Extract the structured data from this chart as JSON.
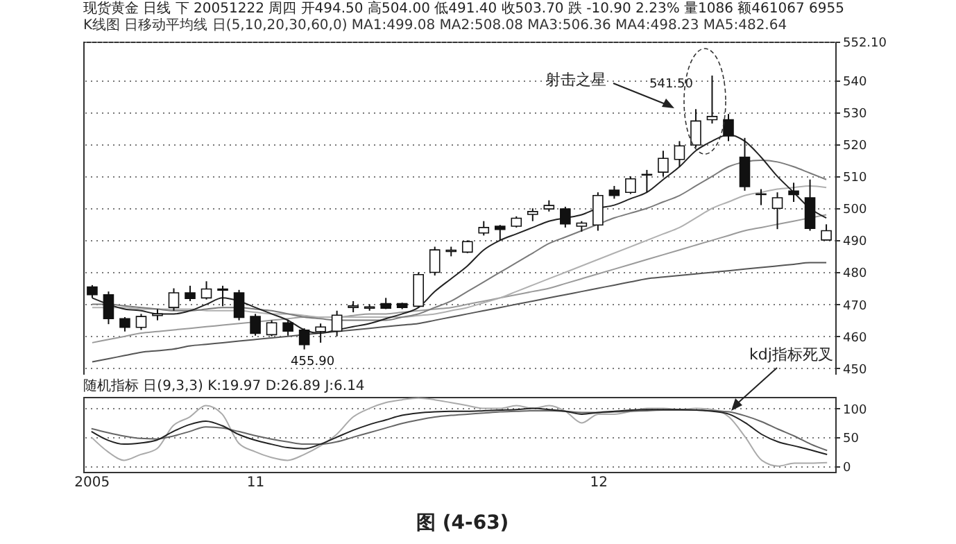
{
  "chart_data": [
    {
      "type": "candlestick",
      "title": "现货黄金 日线 下 20051222 周四 开494.50 高504.00 低491.40 收503.70 跌 -10.90 2.23% 量1086 额461067 6955",
      "subtitle": "K线图 日移动平均线 日(5,10,20,30,60,0) MA1:499.08 MA2:508.08 MA3:506.36 MA4:498.23 MA5:482.64",
      "categories": [
        "2005",
        null,
        null,
        null,
        null,
        null,
        null,
        null,
        null,
        null,
        "11",
        null,
        null,
        null,
        null,
        null,
        null,
        null,
        null,
        null,
        null,
        null,
        null,
        null,
        null,
        null,
        null,
        null,
        null,
        null,
        null,
        "12",
        null,
        null,
        null,
        null,
        null,
        null,
        null,
        null,
        null,
        null,
        null,
        null,
        null,
        null
      ],
      "ohlc": [
        [
          475.4,
          476,
          472,
          473
        ],
        [
          473,
          474,
          463.8,
          465.5
        ],
        [
          465.5,
          466,
          461.5,
          462.8
        ],
        [
          462.8,
          467,
          462,
          466.2
        ],
        [
          466.5,
          468.5,
          465,
          467
        ],
        [
          469,
          475,
          468,
          473.6
        ],
        [
          473.6,
          475.8,
          471,
          471.8
        ],
        [
          472,
          477.2,
          471.5,
          474.8
        ],
        [
          474.8,
          475.8,
          469.4,
          474.4
        ],
        [
          473.6,
          474.5,
          465,
          465.9
        ],
        [
          466.2,
          467,
          460.2,
          460.9
        ],
        [
          460.5,
          465,
          460,
          464.2
        ],
        [
          464.2,
          465.2,
          460.2,
          461.6
        ],
        [
          461.9,
          462.5,
          455.9,
          457.4
        ],
        [
          461.5,
          464,
          458,
          462.9
        ],
        [
          461.6,
          468,
          460,
          466.6
        ],
        [
          469,
          471,
          467.5,
          469.5
        ],
        [
          468.8,
          470,
          468,
          469.2
        ],
        [
          470.2,
          472,
          468.5,
          468.8
        ],
        [
          470.2,
          470.5,
          468.5,
          469
        ],
        [
          469.4,
          480,
          469,
          479.3
        ],
        [
          480,
          488,
          479,
          487
        ],
        [
          486.5,
          488,
          485,
          486.9
        ],
        [
          486.3,
          490,
          486,
          489.6
        ],
        [
          492.3,
          496,
          491.5,
          494
        ],
        [
          494.4,
          494.8,
          490,
          493.4
        ],
        [
          494.4,
          497.5,
          494,
          496.9
        ],
        [
          498.1,
          500,
          496,
          499
        ],
        [
          499.8,
          502.5,
          499,
          500.9
        ],
        [
          499.8,
          500.5,
          494,
          495.1
        ],
        [
          494.4,
          496,
          492.7,
          495.4
        ],
        [
          494.8,
          505,
          493,
          504
        ],
        [
          505.7,
          507,
          503,
          504
        ],
        [
          505,
          510,
          504.5,
          509.2
        ],
        [
          510.4,
          512,
          505,
          510.6
        ],
        [
          511.3,
          518,
          510,
          515.6
        ],
        [
          515.3,
          521,
          513,
          519.5
        ],
        [
          519.8,
          531,
          519,
          527.3
        ],
        [
          527.7,
          541.5,
          526.5,
          528.7
        ],
        [
          527.7,
          529.5,
          521,
          522.6
        ],
        [
          516,
          522,
          505.5,
          506.8
        ],
        [
          504.3,
          506,
          501,
          504.5
        ],
        [
          500,
          505,
          493.5,
          503.3
        ],
        [
          505.4,
          508,
          502,
          504.3
        ],
        [
          503.3,
          509,
          493,
          493.7
        ],
        [
          490.1,
          495,
          490,
          493
        ]
      ],
      "series": [
        {
          "type": "line",
          "color": "#9a9a9a",
          "values": [
            458,
            459,
            460,
            461,
            461.5,
            462,
            462.5,
            463,
            463.5,
            464,
            464.5,
            465,
            465.5,
            466,
            466,
            466,
            466.5,
            467,
            467,
            467.5,
            468,
            468.5,
            469,
            470,
            471,
            472,
            473,
            474,
            475,
            476.5,
            478,
            479.5,
            481,
            482.5,
            484,
            485.5,
            487,
            488.5,
            490,
            491.5,
            493,
            494,
            495,
            496,
            497,
            498
          ]
        },
        {
          "type": "line",
          "color": "#555555",
          "values": [
            452,
            453,
            454,
            455,
            455.5,
            456,
            457,
            457.5,
            458,
            458.5,
            459,
            459.5,
            460,
            460.5,
            461,
            461.5,
            462,
            462.5,
            463,
            463.5,
            464,
            465,
            466,
            467,
            468,
            469,
            470,
            471,
            472,
            473,
            474,
            475,
            476,
            477,
            478,
            478.5,
            479,
            479.5,
            480,
            480.5,
            481,
            481.5,
            482,
            482.5,
            483,
            483
          ]
        },
        {
          "type": "line",
          "color": "#b0b0b0",
          "values": [
            469,
            469,
            469,
            468.5,
            468.5,
            468.5,
            468.5,
            468,
            468,
            468,
            467.5,
            467,
            467,
            466.5,
            466,
            466,
            466,
            466,
            466,
            466,
            466.5,
            467,
            468,
            469,
            470.5,
            472,
            474,
            476,
            478,
            480,
            482,
            484,
            486,
            488,
            490,
            492,
            494,
            497,
            500,
            502,
            504,
            505,
            506,
            506.5,
            507,
            506.5
          ]
        },
        {
          "type": "line",
          "color": "#7a7a7a",
          "values": [
            470,
            470,
            469.5,
            469,
            468.5,
            468,
            468,
            468.5,
            469,
            469,
            468.5,
            468,
            467,
            466,
            465.5,
            465,
            465,
            465,
            465,
            466,
            467,
            469,
            471,
            474,
            477,
            480,
            483,
            486,
            489,
            491,
            493,
            495,
            497,
            498.5,
            500,
            502,
            504,
            507,
            510,
            513,
            514.5,
            515,
            514.5,
            513,
            511,
            509
          ]
        },
        {
          "type": "line",
          "color": "#222222",
          "values": [
            472,
            470,
            468.5,
            468,
            467,
            467,
            468,
            470,
            472,
            471,
            469,
            467,
            465,
            462,
            461,
            462,
            463,
            464,
            465.5,
            467,
            469,
            474,
            478,
            482,
            487,
            490,
            492,
            494,
            496,
            497,
            498,
            500,
            501,
            503,
            505,
            509,
            513,
            518,
            521,
            523,
            521,
            516,
            510,
            505,
            500,
            497
          ]
        }
      ],
      "ylim": [
        448,
        552.1
      ],
      "yticks": [
        450,
        460,
        470,
        480,
        490,
        500,
        510,
        520,
        530,
        540,
        {
          "value": 552.1,
          "label": "552.10"
        }
      ],
      "grid": "y",
      "tick_labels": "y",
      "annotations": [
        "射击之星",
        "541.50",
        {
          "text": "455.90",
          "y": 455.9
        }
      ]
    },
    {
      "type": "line",
      "title": "随机指标 日(9,3,3) K:19.97 D:26.89 J:6.14",
      "categories": [
        "2005",
        null,
        null,
        null,
        null,
        null,
        null,
        null,
        null,
        null,
        "11",
        null,
        null,
        null,
        null,
        null,
        null,
        null,
        null,
        null,
        null,
        null,
        null,
        null,
        null,
        null,
        null,
        null,
        null,
        null,
        null,
        "12",
        null,
        null,
        null,
        null,
        null,
        null,
        null,
        null,
        null,
        null,
        null,
        null,
        null,
        null
      ],
      "series": [
        {
          "color": "#aaaaaa",
          "values": [
            50,
            25,
            10,
            20,
            30,
            70,
            85,
            105,
            90,
            40,
            25,
            15,
            10,
            20,
            35,
            55,
            85,
            100,
            110,
            115,
            118,
            115,
            110,
            105,
            100,
            100,
            105,
            100,
            105,
            95,
            75,
            90,
            90,
            95,
            100,
            100,
            98,
            100,
            98,
            85,
            50,
            10,
            0,
            5,
            5,
            6
          ]
        },
        {
          "color": "#666666",
          "values": [
            65,
            58,
            52,
            48,
            47,
            52,
            60,
            68,
            66,
            60,
            53,
            47,
            42,
            38,
            38,
            42,
            50,
            58,
            66,
            74,
            80,
            85,
            88,
            90,
            92,
            94,
            95,
            96,
            96,
            95,
            93,
            93,
            94,
            95,
            96,
            97,
            97,
            97,
            96,
            94,
            87,
            77,
            64,
            52,
            38,
            27
          ]
        },
        {
          "color": "#222222",
          "values": [
            60,
            45,
            38,
            40,
            45,
            60,
            72,
            78,
            70,
            55,
            45,
            38,
            32,
            30,
            38,
            50,
            62,
            72,
            80,
            88,
            92,
            94,
            95,
            95,
            96,
            97,
            98,
            100,
            98,
            95,
            90,
            93,
            95,
            97,
            98,
            98,
            98,
            97,
            95,
            90,
            75,
            55,
            42,
            35,
            28,
            20
          ]
        }
      ],
      "ylim": [
        -10,
        120
      ],
      "yticks": [
        0,
        50,
        100
      ],
      "grid": "y",
      "annotations": [
        "kdj指标死叉",
        "图 (4-63)"
      ]
    }
  ]
}
